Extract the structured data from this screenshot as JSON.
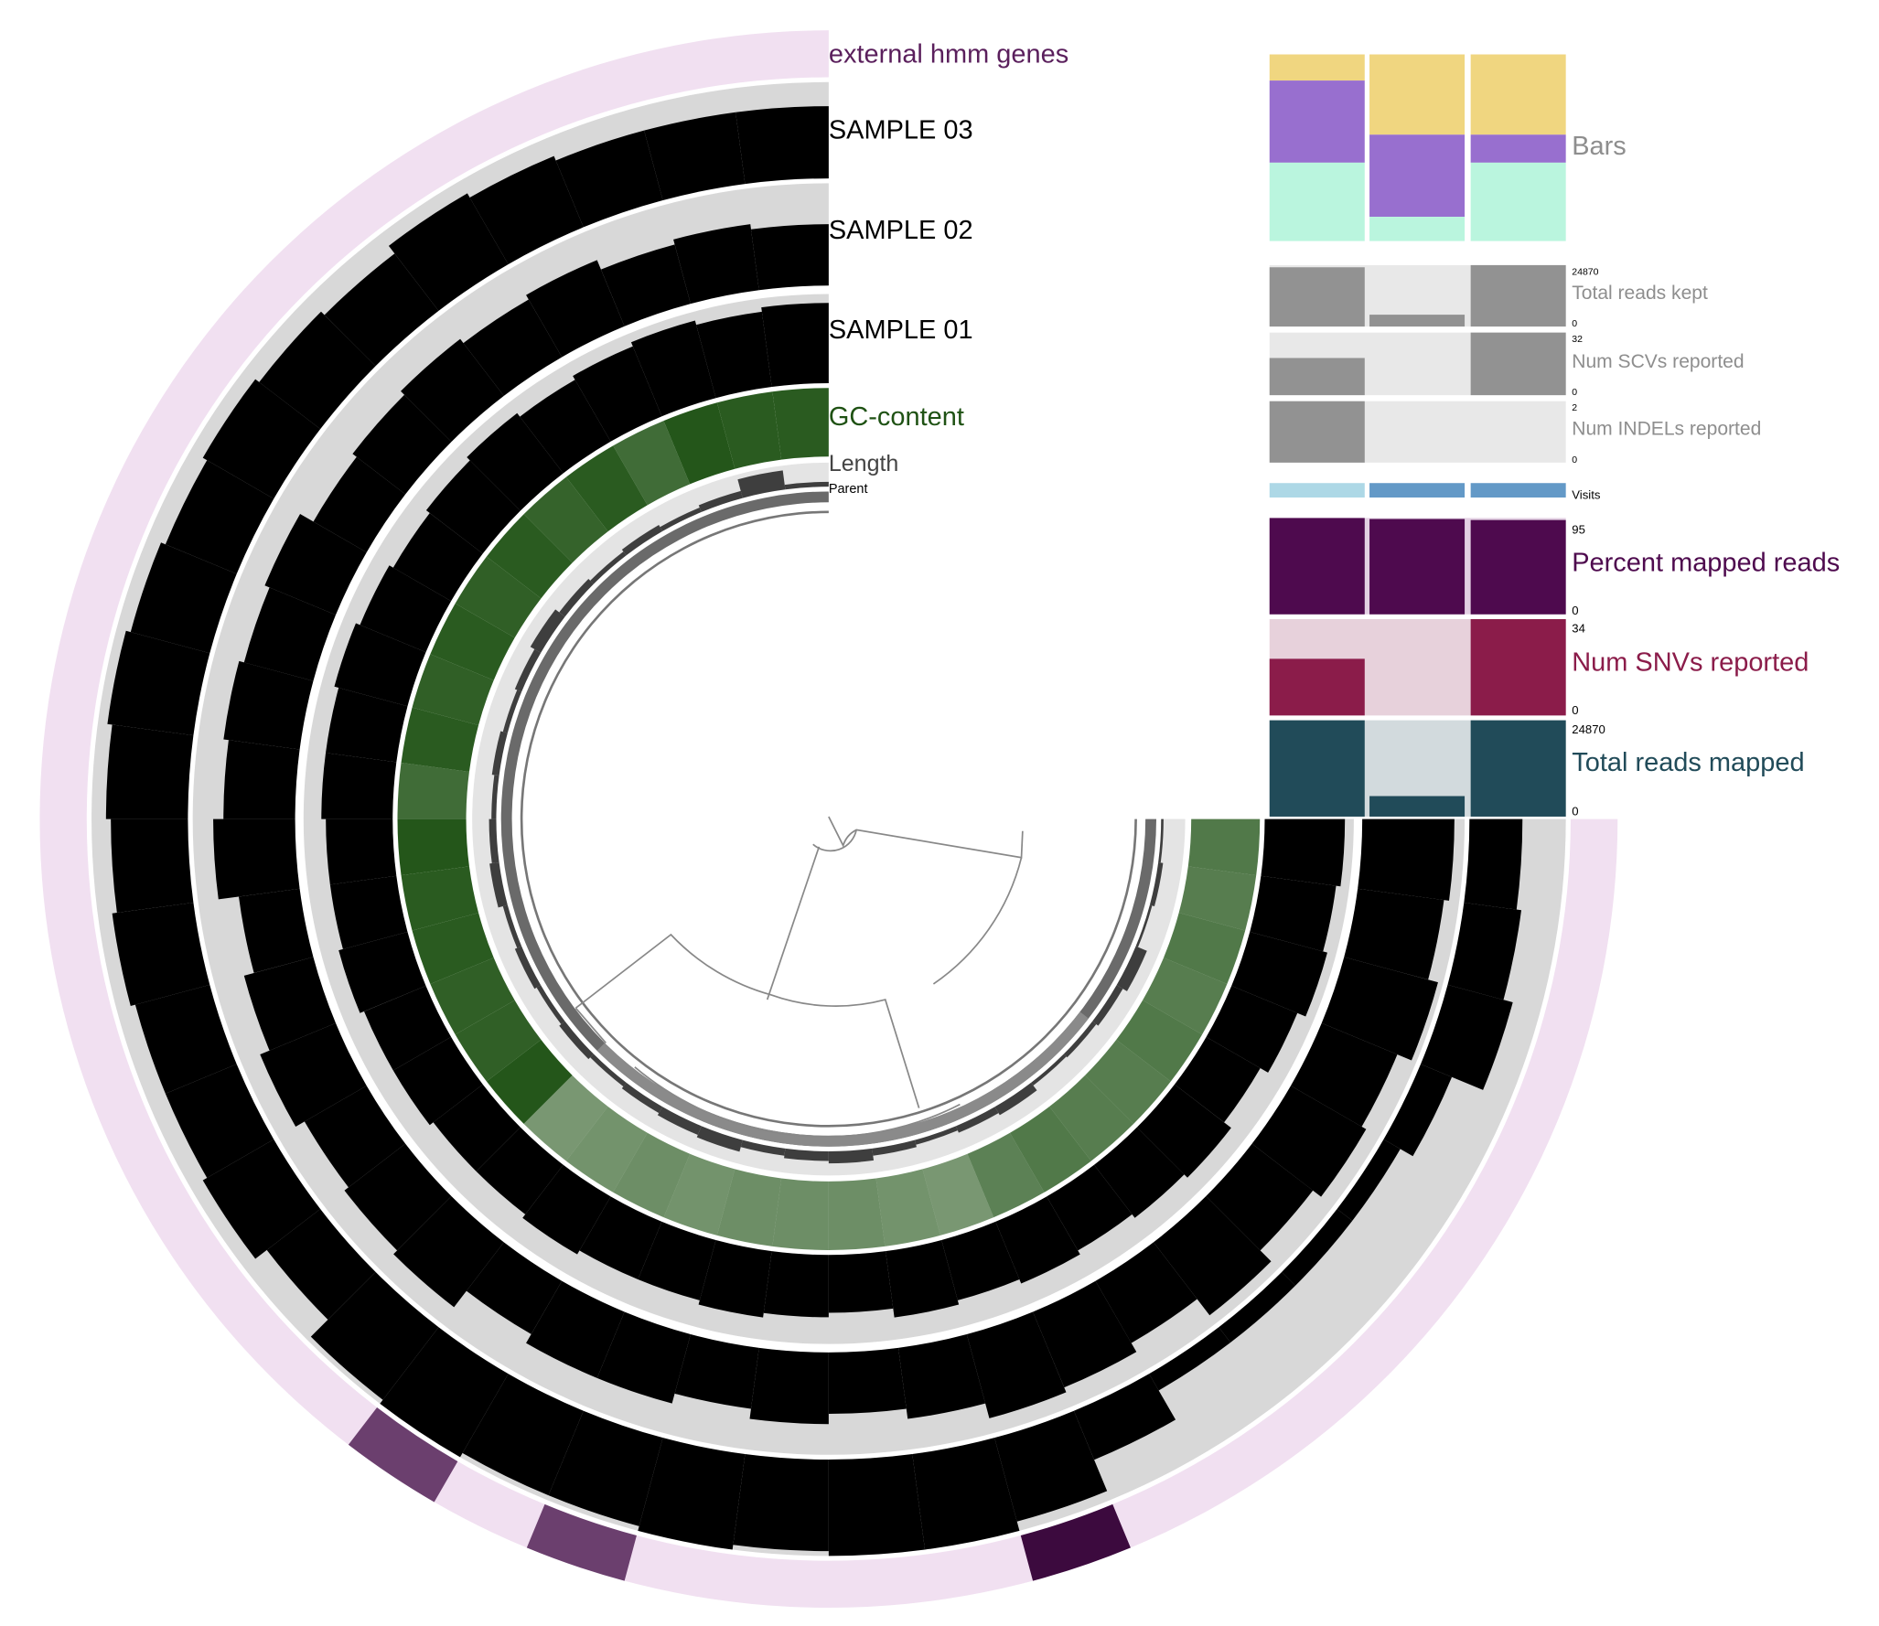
{
  "leaf_count": 36,
  "rings": {
    "external_hmm": {
      "label": "external hmm genes",
      "bg": "#f1e0f1",
      "hits": [
        {
          "leaf": 9,
          "color": "#3c0a3e"
        },
        {
          "leaf": 14,
          "color": "#6b3f6e"
        },
        {
          "leaf": 16,
          "color": "#6b3f6e"
        }
      ]
    },
    "sample03": {
      "label": "SAMPLE 03",
      "values": [
        0.55,
        0.6,
        0.7,
        0.35,
        0.2,
        0.2,
        0.2,
        0.2,
        0.55,
        0.9,
        1,
        1,
        0.95,
        1,
        0.95,
        0.95,
        1,
        0.95,
        0.7,
        0.85,
        0.8,
        0.8,
        0.85,
        0.8,
        0.85,
        0.9,
        0.85,
        0.8,
        0.85,
        0.8,
        0.75,
        0.85,
        0.8,
        0.75,
        0.75,
        0.75
      ]
    },
    "sample02": {
      "label": "SAMPLE 02",
      "values": [
        0.9,
        0.85,
        0.95,
        0.8,
        0.85,
        0.75,
        0.9,
        0.7,
        0.8,
        0.85,
        0.7,
        0.6,
        0.7,
        0.6,
        0.7,
        0.7,
        0.6,
        0.8,
        0.75,
        0.7,
        0.8,
        0.7,
        0.6,
        0.8,
        0.7,
        0.75,
        0.7,
        0.75,
        0.6,
        0.65,
        0.7,
        0.65,
        0.7,
        0.6,
        0.65,
        0.6
      ]
    },
    "sample01": {
      "label": "SAMPLE 01",
      "values": [
        0.9,
        0.85,
        0.9,
        0.8,
        0.7,
        0.8,
        0.75,
        0.7,
        0.75,
        0.7,
        0.75,
        0.65,
        0.7,
        0.75,
        0.7,
        0.7,
        0.75,
        0.7,
        0.7,
        0.75,
        0.75,
        0.8,
        0.75,
        0.75,
        0.8,
        0.8,
        0.85,
        0.8,
        0.75,
        0.8,
        0.85,
        0.8,
        0.85,
        0.9,
        0.85,
        0.9
      ]
    },
    "gc": {
      "label": "GC-content",
      "color": "#1f5214",
      "values": [
        0.55,
        0.5,
        0.55,
        0.5,
        0.55,
        0.5,
        0.5,
        0.55,
        0.45,
        0.2,
        0.25,
        0.3,
        0.3,
        0.3,
        0.25,
        0.3,
        0.25,
        0.2,
        0.95,
        0.85,
        0.85,
        0.9,
        0.9,
        0.95,
        0.7,
        0.9,
        0.85,
        0.9,
        0.85,
        0.9,
        0.8,
        0.9,
        0.7,
        0.95,
        0.9,
        0.9
      ]
    },
    "length": {
      "label": "Length",
      "values": [
        0.1,
        0.2,
        0.1,
        0.5,
        0.3,
        0.2,
        0.15,
        0.4,
        0.3,
        0.2,
        0.3,
        0.5,
        0.4,
        0.3,
        0.5,
        0.4,
        0.3,
        0.2,
        0.3,
        0.2,
        0.3,
        0.2,
        0.4,
        0.3,
        0.2,
        0.3,
        0.2,
        0.3,
        0.5,
        0.3,
        0.2,
        0.3,
        0.2,
        0.3,
        0.8,
        0.2
      ]
    },
    "parent": {
      "label": "Parent"
    }
  },
  "panel": {
    "samples": [
      "SAMPLE 01",
      "SAMPLE 02",
      "SAMPLE 03"
    ],
    "bars": {
      "label": "Bars",
      "colors": [
        "#baf5de",
        "#986fcf",
        "#f0d680"
      ],
      "values": [
        [
          0.42,
          0.44,
          0.14
        ],
        [
          0.13,
          0.44,
          0.43
        ],
        [
          0.42,
          0.15,
          0.43
        ]
      ]
    },
    "total_reads_kept": {
      "label": "Total reads kept",
      "max": "24870",
      "min": "0",
      "maxv": 24870,
      "values": [
        24000,
        4800,
        24870
      ],
      "bg": "#e8e8e8",
      "fg": "#929292",
      "text": "#8e8e8e"
    },
    "num_scvs": {
      "label": "Num SCVs reported",
      "max": "32",
      "min": "0",
      "maxv": 32,
      "values": [
        19,
        0,
        32
      ],
      "bg": "#e8e8e8",
      "fg": "#929292",
      "text": "#8e8e8e"
    },
    "num_indels": {
      "label": "Num INDELs reported",
      "max": "2",
      "min": "0",
      "maxv": 2,
      "values": [
        2,
        0,
        0
      ],
      "bg": "#e8e8e8",
      "fg": "#929292",
      "text": "#8e8e8e"
    },
    "visits": {
      "label": "Visits",
      "colors": [
        "#add8e6",
        "#6399c7",
        "#6399c7"
      ]
    },
    "percent_mapped": {
      "label": "Percent mapped reads",
      "max": "95",
      "min": "0",
      "maxv": 95,
      "values": [
        95,
        94,
        93
      ],
      "bg": "#e3d0e3",
      "fg": "#4e0a4e",
      "text": "#4e0a4e"
    },
    "num_snvs": {
      "label": "Num SNVs reported",
      "max": "34",
      "min": "0",
      "maxv": 34,
      "values": [
        20,
        0,
        34
      ],
      "bg": "#e7d1db",
      "fg": "#8b1c4a",
      "text": "#8b1c4a"
    },
    "total_reads_mapped": {
      "label": "Total reads mapped",
      "max": "24870",
      "min": "0",
      "maxv": 24870,
      "values": [
        24870,
        5300,
        24870
      ],
      "bg": "#d2dadd",
      "fg": "#214b59",
      "text": "#214b59"
    }
  }
}
